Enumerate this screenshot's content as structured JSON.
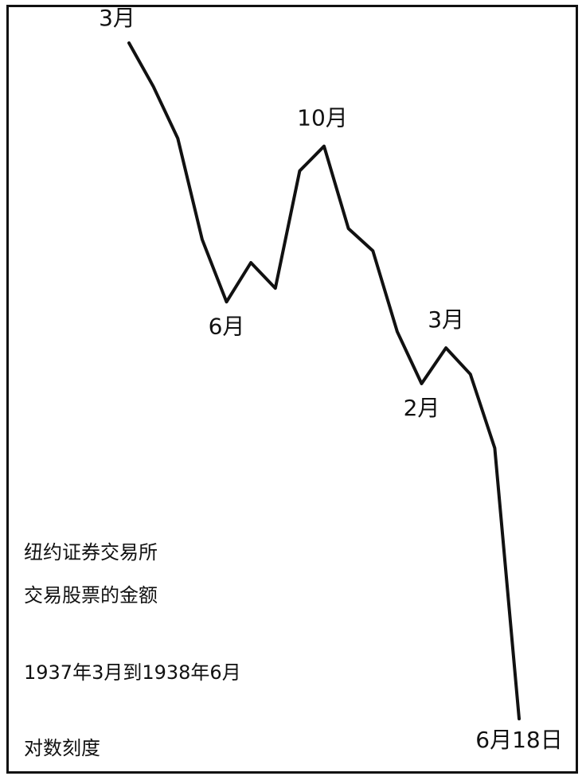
{
  "chart_data": {
    "type": "line",
    "title": "",
    "xlabel": "",
    "ylabel": "",
    "log_scale": true,
    "series": [
      {
        "values": [
          100,
          85,
          70,
          48,
          38,
          44,
          40,
          62,
          68,
          50,
          46,
          34,
          28,
          32,
          29,
          22,
          8
        ]
      }
    ],
    "annotations": [
      {
        "text": "3月",
        "index": 0
      },
      {
        "text": "6月",
        "index": 4
      },
      {
        "text": "10月",
        "index": 8
      },
      {
        "text": "2月",
        "index": 12
      },
      {
        "text": "3月",
        "index": 13
      },
      {
        "text": "6月18日",
        "index": 16
      }
    ],
    "notes": [
      "纽约证券交易所",
      "交易股票的金额",
      "1937年3月到1938年6月",
      "对数刻度"
    ],
    "ylim": [
      7,
      110
    ],
    "grid": false,
    "line_color": "#111111"
  }
}
